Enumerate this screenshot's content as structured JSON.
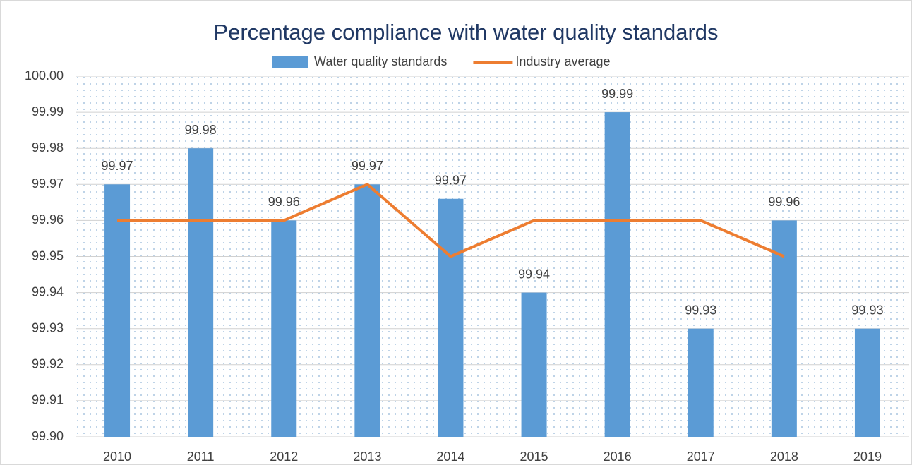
{
  "chart_data": {
    "type": "bar",
    "title": "Percentage compliance with water quality standards",
    "categories": [
      "2010",
      "2011",
      "2012",
      "2013",
      "2014",
      "2015",
      "2016",
      "2017",
      "2018",
      "2019"
    ],
    "series": [
      {
        "name": "Water quality standards",
        "type": "bar",
        "color": "#5b9bd5",
        "values": [
          99.97,
          99.98,
          99.96,
          99.97,
          99.966,
          99.94,
          99.99,
          99.93,
          99.96,
          99.93
        ],
        "value_labels": [
          "99.97",
          "99.98",
          "99.96",
          "99.97",
          "99.97",
          "99.94",
          "99.99",
          "99.93",
          "99.96",
          "99.93"
        ]
      },
      {
        "name": "Industry average",
        "type": "line",
        "color": "#ed7d31",
        "values": [
          99.96,
          99.96,
          99.96,
          99.97,
          99.95,
          99.96,
          99.96,
          99.96,
          99.95,
          null
        ]
      }
    ],
    "ylim": [
      99.9,
      100
    ],
    "yticks": [
      {
        "value": 99.9,
        "label": "99.90"
      },
      99.91,
      99.92,
      99.93,
      99.94,
      99.95,
      99.96,
      99.97,
      99.98,
      99.99,
      {
        "value": 100,
        "label": "100.00"
      }
    ],
    "grid": true,
    "legend": "top"
  }
}
